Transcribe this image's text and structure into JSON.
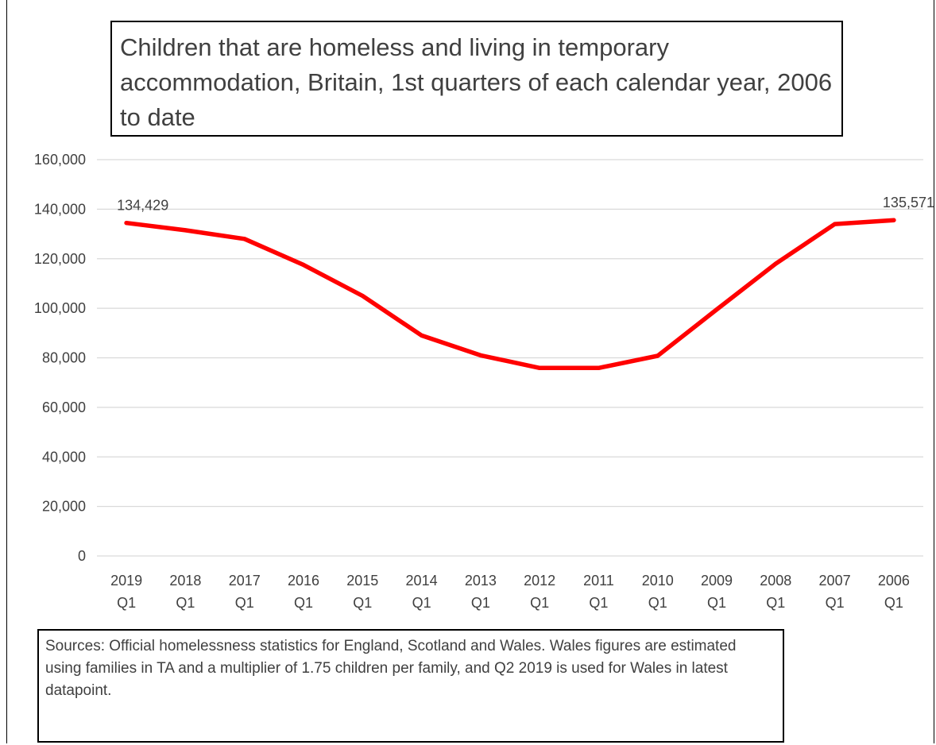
{
  "chart_data": {
    "type": "line",
    "title": "Children that are homeless and living in temporary accommodation, Britain, 1st quarters of each calendar year, 2006 to date",
    "categories": [
      [
        "2019",
        "Q1"
      ],
      [
        "2018",
        "Q1"
      ],
      [
        "2017",
        "Q1"
      ],
      [
        "2016",
        "Q1"
      ],
      [
        "2015",
        "Q1"
      ],
      [
        "2014",
        "Q1"
      ],
      [
        "2013",
        "Q1"
      ],
      [
        "2012",
        "Q1"
      ],
      [
        "2011",
        "Q1"
      ],
      [
        "2010",
        "Q1"
      ],
      [
        "2009",
        "Q1"
      ],
      [
        "2008",
        "Q1"
      ],
      [
        "2007",
        "Q1"
      ],
      [
        "2006",
        "Q1"
      ]
    ],
    "series": [
      {
        "values": [
          134429,
          131500,
          128000,
          117500,
          105000,
          89000,
          81000,
          75900,
          75900,
          80800,
          99500,
          118000,
          134000,
          135571
        ],
        "color": "#ff0000"
      }
    ],
    "data_labels": [
      {
        "index": 0,
        "text": "134,429"
      },
      {
        "index": 13,
        "text": "135,571"
      }
    ],
    "yticks": [
      "0",
      "20,000",
      "40,000",
      "60,000",
      "80,000",
      "100,000",
      "120,000",
      "140,000",
      "160,000"
    ],
    "ylim": [
      0,
      160000
    ],
    "grid": true,
    "legend": "none"
  },
  "note": {
    "text": "Sources: Official homelessness statistics for England, Scotland and Wales. Wales figures are estimated using families in TA and a multiplier of 1.75 children per family, and Q2 2019 is used for Wales in latest datapoint."
  }
}
